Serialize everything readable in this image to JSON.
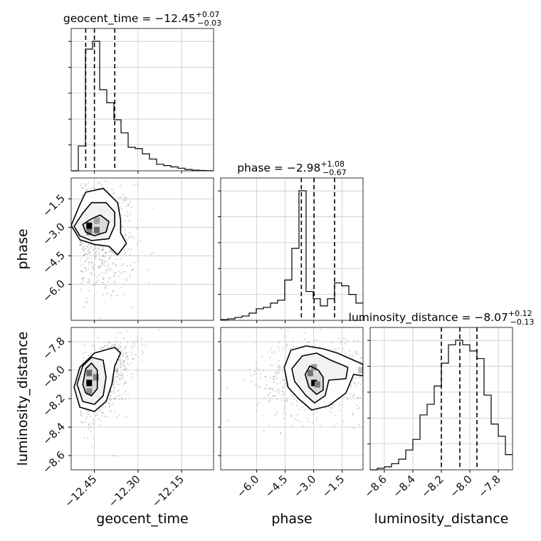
{
  "chart_data": {
    "type": "corner",
    "parameters": [
      "geocent_time",
      "phase",
      "luminosity_distance"
    ],
    "titles": [
      {
        "prefix": "geocent_time = −12.45",
        "plus": "+0.07",
        "minus": "−0.03"
      },
      {
        "prefix": "phase = −2.98",
        "plus": "+1.08",
        "minus": "−0.67"
      },
      {
        "prefix": "luminosity_distance = −8.07",
        "plus": "+0.12",
        "minus": "−0.13"
      }
    ],
    "ranges": [
      [
        -12.53,
        -12.04
      ],
      [
        -7.9,
        -0.4
      ],
      [
        -8.7,
        -7.7
      ]
    ],
    "ticks": [
      {
        "values": [
          -12.45,
          -12.3,
          -12.15
        ],
        "labels": [
          "−12.45",
          "−12.30",
          "−12.15"
        ]
      },
      {
        "values": [
          -6.0,
          -4.5,
          -3.0,
          -1.5
        ],
        "labels": [
          "−6.0",
          "−4.5",
          "−3.0",
          "−1.5"
        ]
      },
      {
        "values": [
          -8.6,
          -8.4,
          -8.2,
          -8.0,
          -7.8
        ],
        "labels": [
          "−8.6",
          "−8.4",
          "−8.2",
          "−8.0",
          "−7.8"
        ]
      }
    ],
    "quantiles": [
      [
        -12.48,
        -12.45,
        -12.38
      ],
      [
        -3.65,
        -2.98,
        -1.9
      ],
      [
        -8.2,
        -8.07,
        -7.95
      ]
    ],
    "histograms": [
      {
        "edges_start": -12.53,
        "bin_width": 0.0245,
        "counts": [
          0.0,
          0.19,
          0.93,
          0.99,
          0.62,
          0.52,
          0.39,
          0.29,
          0.18,
          0.17,
          0.13,
          0.09,
          0.05,
          0.04,
          0.03,
          0.02,
          0.01,
          0.005,
          0.003,
          0.001
        ]
      },
      {
        "edges_start": -7.9,
        "bin_width": 0.375,
        "counts": [
          0.005,
          0.01,
          0.02,
          0.03,
          0.05,
          0.08,
          0.09,
          0.12,
          0.14,
          0.28,
          0.5,
          0.9,
          0.2,
          0.15,
          0.1,
          0.15,
          0.26,
          0.24,
          0.18,
          0.12
        ]
      },
      {
        "edges_start": -8.7,
        "bin_width": 0.05,
        "counts": [
          0.0,
          0.01,
          0.02,
          0.04,
          0.07,
          0.13,
          0.2,
          0.36,
          0.43,
          0.55,
          0.7,
          0.82,
          0.85,
          0.82,
          0.78,
          0.73,
          0.49,
          0.3,
          0.22,
          0.1
        ]
      }
    ],
    "pairs": [
      {
        "x": 0,
        "y": 1,
        "mean": [
          -12.43,
          -3.4
        ],
        "sd": [
          0.05,
          1.35
        ],
        "rho": -0.15,
        "contours": [
          [
            [
              -12.49,
              -2.85
            ],
            [
              -12.46,
              -2.55
            ],
            [
              -12.43,
              -2.35
            ],
            [
              -12.4,
              -2.7
            ],
            [
              -12.41,
              -3.25
            ],
            [
              -12.45,
              -3.45
            ],
            [
              -12.48,
              -3.25
            ]
          ],
          [
            [
              -12.52,
              -2.95
            ],
            [
              -12.49,
              -2.25
            ],
            [
              -12.46,
              -1.7
            ],
            [
              -12.41,
              -1.7
            ],
            [
              -12.38,
              -2.2
            ],
            [
              -12.38,
              -2.9
            ],
            [
              -12.4,
              -3.6
            ],
            [
              -12.46,
              -3.7
            ],
            [
              -12.5,
              -3.45
            ]
          ],
          [
            [
              -12.53,
              -2.9
            ],
            [
              -12.5,
              -1.8
            ],
            [
              -12.48,
              -1.15
            ],
            [
              -12.42,
              -0.95
            ],
            [
              -12.37,
              -1.7
            ],
            [
              -12.36,
              -2.6
            ],
            [
              -12.36,
              -3.3
            ],
            [
              -12.34,
              -3.85
            ],
            [
              -12.37,
              -4.45
            ],
            [
              -12.4,
              -4.0
            ],
            [
              -12.45,
              -3.9
            ],
            [
              -12.5,
              -3.65
            ]
          ]
        ],
        "dark_cells": [
          [
            -12.468,
            -2.92,
            1.0
          ],
          [
            -12.442,
            -3.15,
            0.55
          ],
          [
            -12.468,
            -3.25,
            0.45
          ],
          [
            -12.442,
            -2.65,
            0.3
          ]
        ]
      },
      {
        "x": 0,
        "y": 2,
        "mean": [
          -12.42,
          -8.05
        ],
        "sd": [
          0.05,
          0.13
        ],
        "rho": 0.55,
        "contours": [
          [
            [
              -12.49,
              -8.1
            ],
            [
              -12.48,
              -7.99
            ],
            [
              -12.46,
              -7.95
            ],
            [
              -12.44,
              -8.0
            ],
            [
              -12.44,
              -8.13
            ],
            [
              -12.46,
              -8.18
            ],
            [
              -12.48,
              -8.16
            ]
          ],
          [
            [
              -12.51,
              -8.1
            ],
            [
              -12.49,
              -7.97
            ],
            [
              -12.46,
              -7.91
            ],
            [
              -12.42,
              -7.93
            ],
            [
              -12.41,
              -8.05
            ],
            [
              -12.42,
              -8.18
            ],
            [
              -12.45,
              -8.24
            ],
            [
              -12.49,
              -8.22
            ]
          ],
          [
            [
              -12.52,
              -8.12
            ],
            [
              -12.5,
              -7.98
            ],
            [
              -12.45,
              -7.88
            ],
            [
              -12.38,
              -7.84
            ],
            [
              -12.36,
              -7.88
            ],
            [
              -12.38,
              -7.97
            ],
            [
              -12.39,
              -8.1
            ],
            [
              -12.41,
              -8.22
            ],
            [
              -12.45,
              -8.29
            ],
            [
              -12.5,
              -8.26
            ]
          ]
        ],
        "dark_cells": [
          [
            -12.468,
            -8.09,
            1.0
          ],
          [
            -12.468,
            -8.02,
            0.55
          ],
          [
            -12.445,
            -8.05,
            0.45
          ],
          [
            -12.468,
            -8.15,
            0.4
          ]
        ]
      },
      {
        "x": 1,
        "y": 2,
        "mean": [
          -2.9,
          -8.05
        ],
        "sd": [
          1.3,
          0.12
        ],
        "rho": 0.1,
        "contours": [
          [
            [
              -3.45,
              -8.03
            ],
            [
              -3.2,
              -7.97
            ],
            [
              -2.75,
              -8.0
            ],
            [
              -2.5,
              -8.05
            ],
            [
              -2.5,
              -8.14
            ],
            [
              -2.85,
              -8.17
            ],
            [
              -3.25,
              -8.12
            ]
          ],
          [
            [
              -4.15,
              -7.99
            ],
            [
              -3.6,
              -7.9
            ],
            [
              -2.85,
              -7.88
            ],
            [
              -2.1,
              -7.93
            ],
            [
              -1.2,
              -7.98
            ],
            [
              -1.3,
              -8.06
            ],
            [
              -2.2,
              -8.07
            ],
            [
              -2.4,
              -8.18
            ],
            [
              -2.95,
              -8.23
            ],
            [
              -3.4,
              -8.18
            ],
            [
              -4.0,
              -8.08
            ]
          ],
          [
            [
              -4.55,
              -7.98
            ],
            [
              -4.2,
              -7.86
            ],
            [
              -3.4,
              -7.83
            ],
            [
              -2.5,
              -7.85
            ],
            [
              -1.75,
              -7.88
            ],
            [
              -0.9,
              -7.93
            ],
            [
              -0.4,
              -7.96
            ],
            [
              -0.4,
              -8.04
            ],
            [
              -0.9,
              -8.03
            ],
            [
              -1.3,
              -8.16
            ],
            [
              -2.2,
              -8.25
            ],
            [
              -3.1,
              -8.28
            ],
            [
              -3.8,
              -8.2
            ],
            [
              -4.35,
              -8.12
            ]
          ]
        ],
        "dark_cells": [
          [
            -2.98,
            -8.09,
            1.0
          ],
          [
            -3.18,
            -8.02,
            0.5
          ],
          [
            -2.8,
            -8.1,
            0.45
          ],
          [
            -2.98,
            -7.98,
            0.35
          ],
          [
            -0.5,
            -8.0,
            0.15
          ]
        ]
      }
    ],
    "grid": true,
    "color": "#000000",
    "scatter_color": "#888888"
  }
}
